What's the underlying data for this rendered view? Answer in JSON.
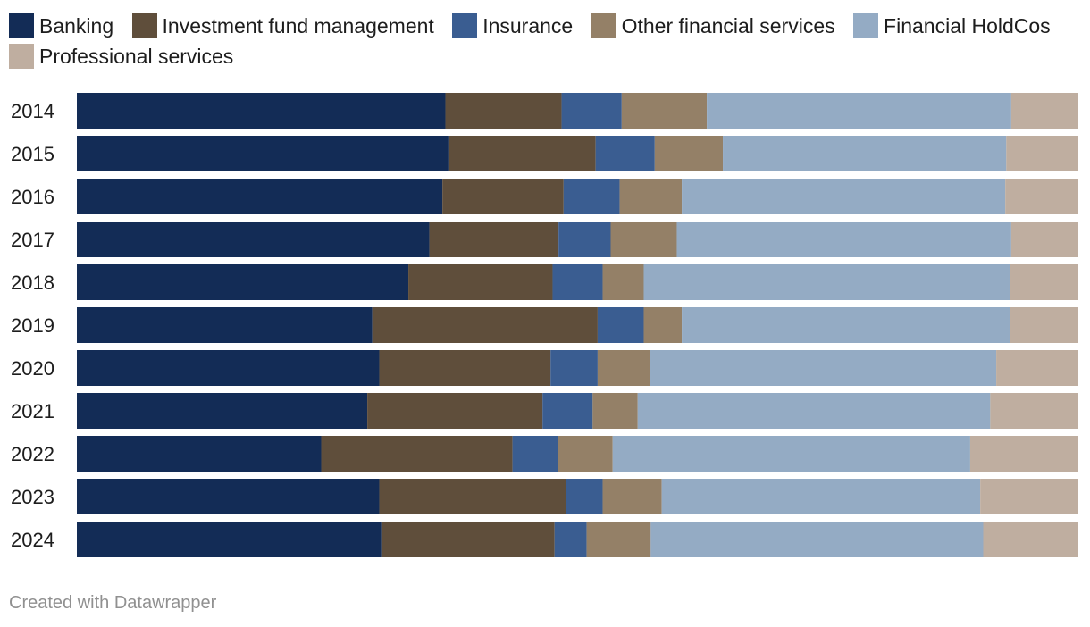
{
  "colors": {
    "Banking": "#132c56",
    "Investment fund management": "#5f4e3b",
    "Insurance": "#3a5d91",
    "Other financial services": "#948067",
    "Financial HoldCos": "#94abc4",
    "Professional services": "#bfaea0"
  },
  "footer": "Created with Datawrapper",
  "chart_data": {
    "type": "bar",
    "orientation": "horizontal",
    "stacked": true,
    "normalized": true,
    "xlim": [
      0,
      100
    ],
    "legend_position": "top",
    "categories": [
      "2014",
      "2015",
      "2016",
      "2017",
      "2018",
      "2019",
      "2020",
      "2021",
      "2022",
      "2023",
      "2024"
    ],
    "series": [
      {
        "name": "Banking",
        "values": [
          36.8,
          37.1,
          36.5,
          35.2,
          33.1,
          29.5,
          30.2,
          29.0,
          24.4,
          30.2,
          30.4
        ]
      },
      {
        "name": "Investment fund management",
        "values": [
          11.6,
          14.7,
          12.1,
          12.9,
          14.4,
          22.5,
          17.1,
          17.5,
          19.1,
          18.6,
          17.3
        ]
      },
      {
        "name": "Insurance",
        "values": [
          6.0,
          5.9,
          5.6,
          5.2,
          5.0,
          4.6,
          4.7,
          5.0,
          4.5,
          3.7,
          3.2
        ]
      },
      {
        "name": "Other financial services",
        "values": [
          8.5,
          6.8,
          6.2,
          6.6,
          4.1,
          3.8,
          5.2,
          4.5,
          5.5,
          5.9,
          6.4
        ]
      },
      {
        "name": "Financial HoldCos",
        "values": [
          30.4,
          28.3,
          32.3,
          33.4,
          36.6,
          32.8,
          34.6,
          35.2,
          35.7,
          31.8,
          33.2
        ]
      },
      {
        "name": "Professional services",
        "values": [
          6.7,
          7.2,
          7.3,
          6.7,
          6.8,
          6.8,
          8.2,
          8.8,
          10.8,
          9.8,
          9.5
        ]
      }
    ]
  }
}
